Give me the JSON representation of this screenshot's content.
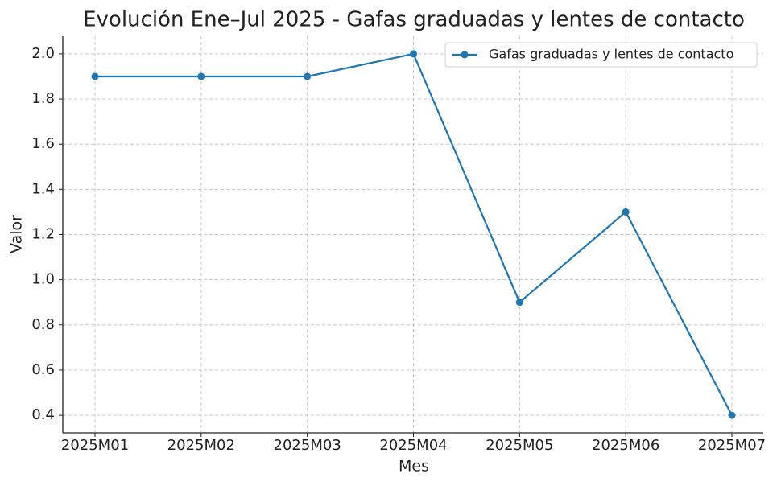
{
  "chart_data": {
    "type": "line",
    "title": "Evolución Ene–Jul 2025 - Gafas graduadas y lentes de contacto",
    "x_label": "Mes",
    "y_label": "Valor",
    "categories": [
      "2025M01",
      "2025M02",
      "2025M03",
      "2025M04",
      "2025M05",
      "2025M06",
      "2025M07"
    ],
    "series": [
      {
        "name": "Gafas graduadas y lentes de contacto",
        "color": "#1f77b4",
        "values": [
          1.9,
          1.9,
          1.9,
          2.0,
          0.9,
          1.3,
          0.4
        ]
      }
    ],
    "ylim": [
      0.322,
      2.078
    ],
    "yticks": [
      0.4,
      0.6,
      0.8,
      {
        "value": 1.0,
        "label": "1.0"
      },
      1.2,
      1.4,
      1.6,
      1.8,
      {
        "value": 2.0,
        "label": "2.0"
      }
    ],
    "grid": true,
    "legend": "upper right"
  }
}
